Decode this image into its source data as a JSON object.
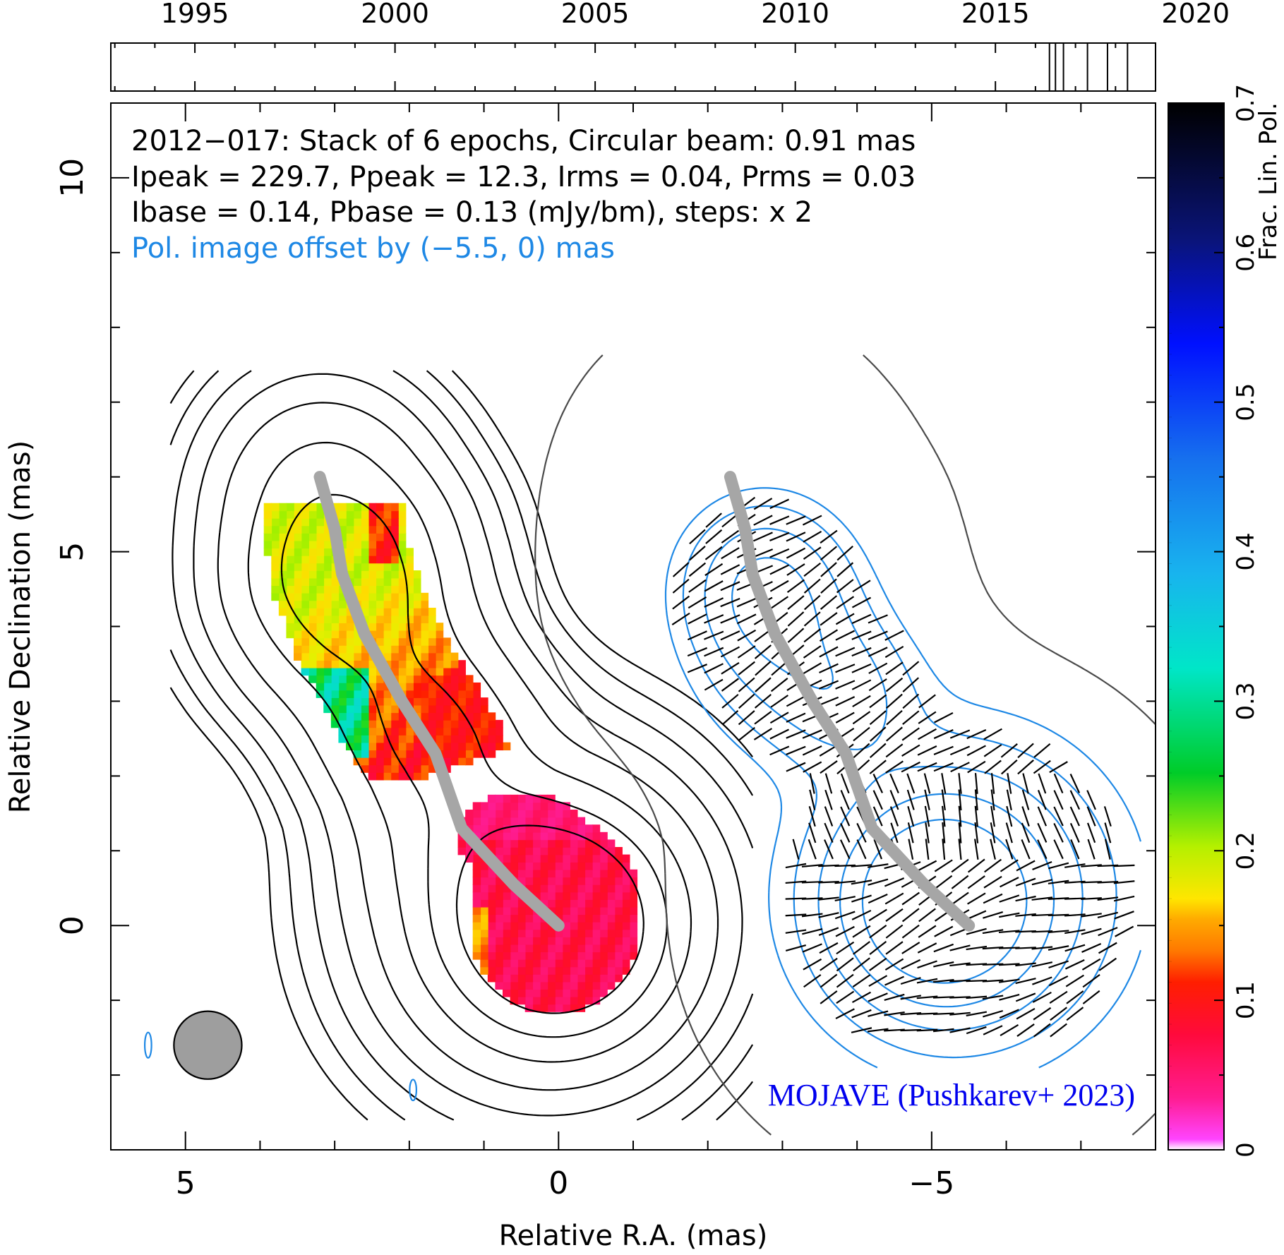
{
  "chart_data": {
    "type": "heatmap",
    "timeline": {
      "tick_labels": [
        "1995",
        "2000",
        "2005",
        "2010",
        "2015",
        "2020"
      ],
      "range": [
        1992.9,
        2019.0
      ],
      "epochs": [
        2016.35,
        2016.5,
        2016.7,
        2017.3,
        2017.8,
        2018.3
      ]
    },
    "annotations": {
      "line1": "2012−017: Stack of 6 epochs, Circular beam: 0.91 mas",
      "line2": "Ipeak = 229.7, Ppeak = 12.3, Irms = 0.04, Prms = 0.03",
      "line3": "Ibase = 0.14, Pbase = 0.13 (mJy/bm), steps: x 2",
      "line4": "Pol. image offset by (−5.5, 0) mas",
      "credit": "MOJAVE (Pushkarev+ 2023)"
    },
    "xlabel": "Relative R.A. (mas)",
    "ylabel": "Relative Declination (mas)",
    "xlim": [
      6.0,
      -8.0
    ],
    "ylim": [
      -3.0,
      11.0
    ],
    "x_ticks": [
      5,
      0,
      -5
    ],
    "x_tick_labels": [
      "5",
      "0",
      "−5"
    ],
    "y_ticks": [
      0,
      5,
      10
    ],
    "y_tick_labels": [
      "0",
      "5",
      "10"
    ],
    "colorbar": {
      "label": "Frac. Lin. Pol.",
      "range": [
        0,
        0.7
      ],
      "ticks": [
        0,
        0.1,
        0.2,
        0.3,
        0.4,
        0.5,
        0.6,
        0.7
      ],
      "tick_labels": [
        "0",
        "0.1",
        "0.2",
        "0.3",
        "0.4",
        "0.5",
        "0.6",
        "0.7"
      ]
    },
    "ridgeline": [
      [
        0.0,
        0.0
      ],
      [
        0.6,
        0.55
      ],
      [
        1.3,
        1.3
      ],
      [
        1.65,
        2.3
      ],
      [
        2.1,
        3.0
      ],
      [
        2.6,
        3.9
      ],
      [
        2.9,
        4.7
      ],
      [
        3.0,
        5.3
      ],
      [
        3.2,
        6.0
      ]
    ],
    "pol_offset_x": -5.5,
    "beam": {
      "diameter_mas": 0.91,
      "center": [
        4.7,
        -1.6
      ]
    },
    "colors": {
      "accent": "#1e88e5",
      "credit": "#0000ee",
      "ridge": "#a6a6a6",
      "beam": "#9e9e9e"
    }
  }
}
